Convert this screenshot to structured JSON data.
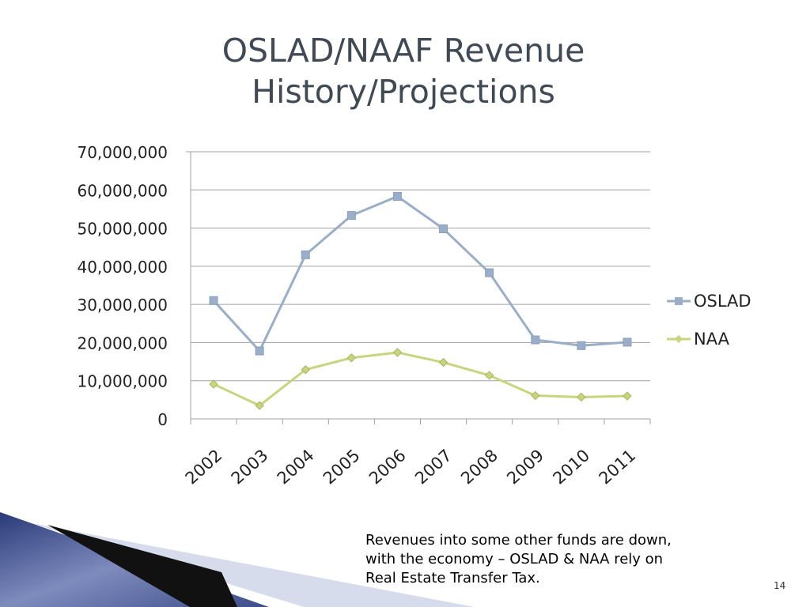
{
  "slide": {
    "title_lines": [
      "OSLAD/NAAF Revenue",
      "History/Projections"
    ],
    "caption_lines": [
      "Revenues into some other funds are down,",
      "with the economy – OSLAD & NAA rely on",
      "Real Estate Transfer Tax."
    ],
    "page_number": "14"
  },
  "chart_data": {
    "type": "line",
    "title": "",
    "xlabel": "",
    "ylabel": "",
    "categories": [
      "2002",
      "2003",
      "2004",
      "2005",
      "2006",
      "2007",
      "2008",
      "2009",
      "2010",
      "2011"
    ],
    "ylim": [
      0,
      70000000
    ],
    "yticks": [
      0,
      10000000,
      20000000,
      30000000,
      40000000,
      50000000,
      60000000,
      70000000
    ],
    "ytick_labels": [
      "0",
      "10,000,000",
      "20,000,000",
      "30,000,000",
      "40,000,000",
      "50,000,000",
      "60,000,000",
      "70,000,000"
    ],
    "grid": true,
    "legend_position": "right",
    "series": [
      {
        "name": "OSLAD",
        "color": "#9aaec8",
        "marker": "square",
        "values": [
          31000000,
          17800000,
          43000000,
          53300000,
          58300000,
          49800000,
          38300000,
          20700000,
          19200000,
          20100000
        ]
      },
      {
        "name": "NAA",
        "color": "#c8d47e",
        "marker": "diamond",
        "values": [
          9100000,
          3500000,
          12900000,
          16000000,
          17400000,
          14800000,
          11400000,
          6100000,
          5700000,
          6000000
        ]
      }
    ]
  },
  "colors": {
    "title_text": "#404a54",
    "grid": "#a0a0a0",
    "axis": "#a0a0a0",
    "decoration_blue": "#3e4f8a",
    "decoration_light": "#d6dceb"
  }
}
